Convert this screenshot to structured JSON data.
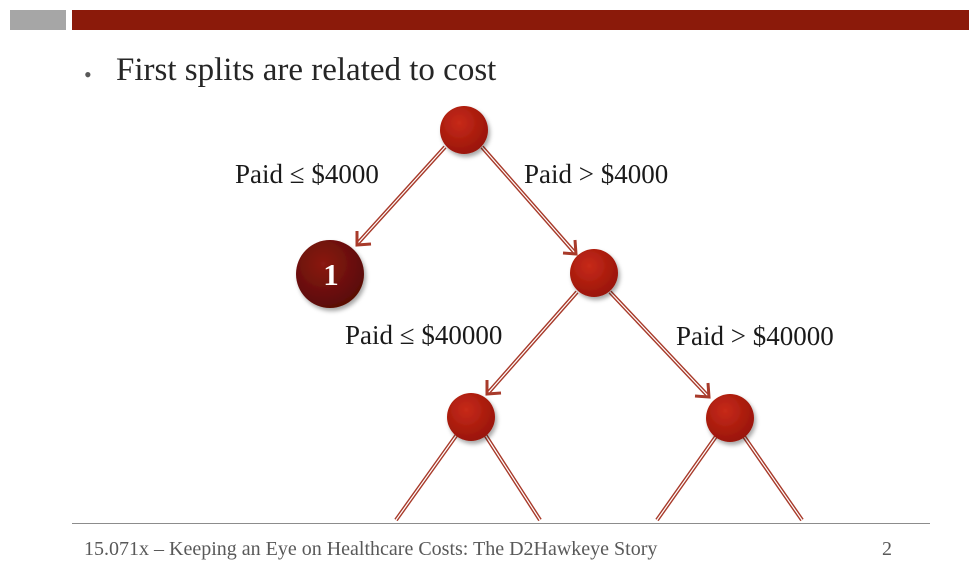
{
  "slide": {
    "bullet": "First splits are related to cost",
    "footer": "15.071x – Keeping an Eye on Healthcare Costs: The D2Hawkeye Story",
    "page_number": "2"
  },
  "tree": {
    "leaf_label": "1",
    "edges": {
      "root_left": "Paid ≤ $4000",
      "root_right": "Paid > $4000",
      "mid_left": "Paid ≤ $40000",
      "mid_right": "Paid > $40000"
    },
    "colors": {
      "node": "#a8190c",
      "leaf": "#6a0d08",
      "edge": "#a83a2a",
      "header": "#8b1a0a"
    }
  }
}
